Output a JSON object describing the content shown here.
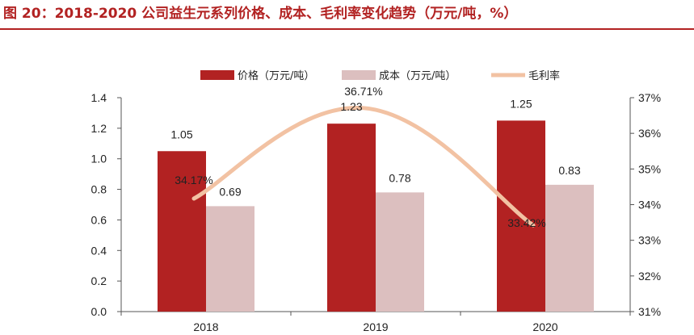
{
  "figure": {
    "title": "图 20：2018-2020 公司益生元系列价格、成本、毛利率变化趋势（万元/吨，%）"
  },
  "colors": {
    "title": "#b22222",
    "price": "#b22222",
    "cost": "#dcbfbf",
    "margin": "#f2c2a3",
    "axis": "#555555",
    "text": "#222222"
  },
  "chart_data": {
    "type": "bar",
    "categories": [
      "2018",
      "2019",
      "2020"
    ],
    "series": [
      {
        "name": "价格（万元/吨）",
        "type": "bar",
        "axis": "left",
        "color": "#b22222",
        "values": [
          1.05,
          1.23,
          1.25
        ],
        "labels": [
          "1.05",
          "1.23",
          "1.25"
        ]
      },
      {
        "name": "成本（万元/吨）",
        "type": "bar",
        "axis": "left",
        "color": "#dcbfbf",
        "values": [
          0.69,
          0.78,
          0.83
        ],
        "labels": [
          "0.69",
          "0.78",
          "0.83"
        ]
      },
      {
        "name": "毛利率",
        "type": "line",
        "axis": "right",
        "color": "#f2c2a3",
        "values": [
          34.17,
          36.71,
          33.42
        ],
        "labels": [
          "34.17%",
          "36.71%",
          "33.42%"
        ]
      }
    ],
    "y_left": {
      "range": [
        0,
        1.4
      ],
      "ticks": [
        "0.0",
        "0.2",
        "0.4",
        "0.6",
        "0.8",
        "1.0",
        "1.2",
        "1.4"
      ]
    },
    "y_right": {
      "range": [
        31,
        37
      ],
      "ticks": [
        "31%",
        "32%",
        "33%",
        "34%",
        "35%",
        "36%",
        "37%"
      ]
    },
    "legend_position": "top",
    "grid": false
  }
}
